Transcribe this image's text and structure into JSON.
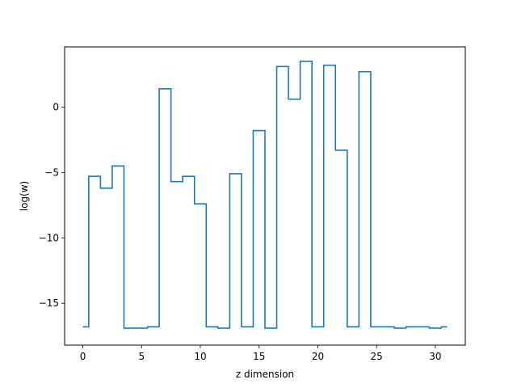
{
  "chart_data": {
    "type": "line",
    "drawstyle": "steps-mid",
    "title": "",
    "xlabel": "z dimension",
    "ylabel": "log(w)",
    "xlim": [
      -1.55,
      32.55
    ],
    "ylim": [
      -18.2,
      4.6
    ],
    "x_ticks": [
      0,
      5,
      10,
      15,
      20,
      25,
      30
    ],
    "x_tick_labels": [
      "0",
      "5",
      "10",
      "15",
      "20",
      "25",
      "30"
    ],
    "y_ticks": [
      -15,
      -10,
      -5,
      0
    ],
    "y_tick_labels": [
      "−15",
      "−10",
      "−5",
      "0"
    ],
    "grid": false,
    "series": [
      {
        "color": "#1f77b4",
        "x": [
          0,
          1,
          2,
          3,
          4,
          5,
          6,
          7,
          8,
          9,
          10,
          11,
          12,
          13,
          14,
          15,
          16,
          17,
          18,
          19,
          20,
          21,
          22,
          23,
          24,
          25,
          26,
          27,
          28,
          29,
          30,
          31
        ],
        "y": [
          -16.8,
          -5.3,
          -6.2,
          -4.5,
          -16.9,
          -16.9,
          -16.8,
          1.4,
          -5.7,
          -5.3,
          -7.4,
          -16.8,
          -16.9,
          -5.1,
          -16.8,
          -1.8,
          -16.9,
          3.1,
          0.6,
          3.5,
          -16.8,
          3.2,
          -3.3,
          -16.8,
          2.7,
          -16.8,
          -16.8,
          -16.9,
          -16.8,
          -16.8,
          -16.9,
          -16.8
        ]
      }
    ]
  }
}
